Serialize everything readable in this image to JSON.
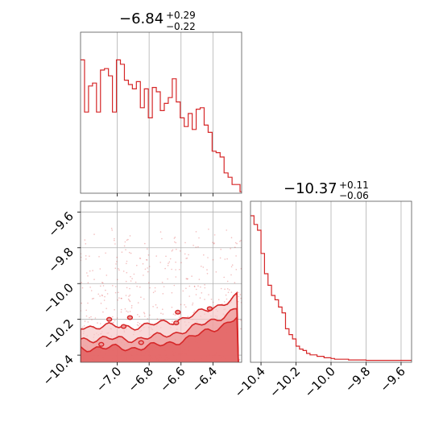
{
  "chart_data": [
    {
      "type": "histogram",
      "panel": "top-left",
      "x_param_range": [
        -7.23,
        -6.22
      ],
      "title": {
        "main": "−6.84",
        "sup": "+0.29",
        "sub": "−0.22"
      },
      "xticks": [
        -7.0,
        -6.8,
        -6.6,
        -6.4
      ],
      "grid": true,
      "color": "#d62728",
      "bin_edges": [
        -7.23,
        -7.205,
        -7.18,
        -7.155,
        -7.13,
        -7.105,
        -7.08,
        -7.055,
        -7.03,
        -7.005,
        -6.98,
        -6.955,
        -6.93,
        -6.905,
        -6.88,
        -6.855,
        -6.83,
        -6.805,
        -6.78,
        -6.755,
        -6.73,
        -6.705,
        -6.68,
        -6.655,
        -6.63,
        -6.605,
        -6.58,
        -6.555,
        -6.53,
        -6.505,
        -6.48,
        -6.455,
        -6.43,
        -6.405,
        -6.38,
        -6.355,
        -6.33,
        -6.305,
        -6.28,
        -6.255,
        -6.23,
        -6.22
      ],
      "counts": [
        0.92,
        0.56,
        0.74,
        0.76,
        0.56,
        0.85,
        0.86,
        0.81,
        0.56,
        0.92,
        0.89,
        0.78,
        0.75,
        0.72,
        0.77,
        0.59,
        0.72,
        0.52,
        0.73,
        0.7,
        0.57,
        0.62,
        0.66,
        0.79,
        0.63,
        0.52,
        0.46,
        0.55,
        0.44,
        0.58,
        0.59,
        0.47,
        0.42,
        0.29,
        0.28,
        0.25,
        0.14,
        0.11,
        0.06,
        0.06,
        0.01
      ]
    },
    {
      "type": "histogram",
      "panel": "bottom-right",
      "x_param_range": [
        -10.46,
        -9.54
      ],
      "title": {
        "main": "−10.37",
        "sup": "+0.11",
        "sub": "−0.06"
      },
      "xticks": [
        -10.4,
        -10.2,
        -10.0,
        -9.8,
        -9.6
      ],
      "grid": true,
      "color": "#d62728",
      "bin_edges": [
        -10.46,
        -10.44,
        -10.42,
        -10.4,
        -10.38,
        -10.36,
        -10.34,
        -10.32,
        -10.3,
        -10.28,
        -10.26,
        -10.24,
        -10.22,
        -10.2,
        -10.18,
        -10.16,
        -10.14,
        -10.12,
        -10.1,
        -10.08,
        -10.06,
        -10.04,
        -10.02,
        -10.0,
        -9.98,
        -9.96,
        -9.94,
        -9.9,
        -9.8,
        -9.54
      ],
      "counts": [
        1.0,
        0.94,
        0.9,
        0.74,
        0.6,
        0.52,
        0.45,
        0.42,
        0.37,
        0.33,
        0.22,
        0.18,
        0.15,
        0.1,
        0.08,
        0.07,
        0.05,
        0.04,
        0.04,
        0.03,
        0.03,
        0.02,
        0.02,
        0.015,
        0.01,
        0.01,
        0.01,
        0.005,
        0.002
      ]
    },
    {
      "type": "scatter",
      "panel": "bottom-left",
      "xlim": [
        -7.23,
        -6.22
      ],
      "ylim": [
        -10.44,
        -9.54
      ],
      "xticks": [
        -7.0,
        -6.8,
        -6.6,
        -6.4
      ],
      "yticks": [
        -9.6,
        -9.8,
        -10.0,
        -10.2,
        -10.4
      ],
      "grid": true,
      "color": "#d62728",
      "note": "2D posterior: scattered samples with filled density contours concentrated near y ≈ -10.3 to -10.44, rising toward the right"
    }
  ]
}
